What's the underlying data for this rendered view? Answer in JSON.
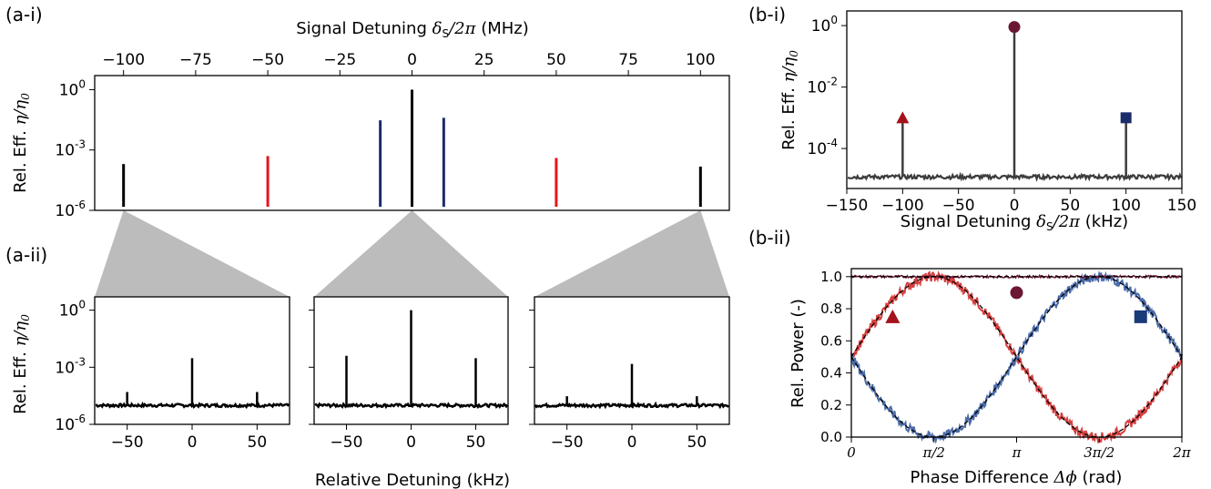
{
  "panels": {
    "a_i": "(a-i)",
    "a_ii": "(a-ii)",
    "b_i": "(b-i)",
    "b_ii": "(b-ii)"
  },
  "colors": {
    "black": "#000000",
    "red": "#e8141a",
    "navy": "#1b2c6b",
    "gray": "#3c3c3c",
    "maroon": "#6b1734",
    "darkred": "#a5121b",
    "blue": "#1a3a7a",
    "fill": "#bcbcbc",
    "red_trace": "#d44040",
    "blue_trace": "#4a6aa8"
  },
  "labels": {
    "signal_detuning_mhz": [
      "Signal Detuning ",
      "δ",
      "S",
      "/2",
      "π",
      " (MHz)"
    ],
    "signal_detuning_khz": [
      "Signal Detuning ",
      "δ",
      "S",
      "/2",
      "π",
      " (kHz)"
    ],
    "rel_eff": [
      "Rel. Eff. ",
      "η/η",
      "0"
    ],
    "relative_detuning": "Relative Detuning (kHz)",
    "rel_power": "Rel. Power (-)",
    "phase_difference": [
      "Phase Difference ",
      "Δϕ",
      " (rad)"
    ]
  },
  "chart_data": [
    {
      "id": "a-i",
      "type": "line",
      "x_axis": "Signal Detuning δS/2π (MHz)",
      "y_axis": "Rel. Eff. η/η0",
      "x_ticks": [
        "−100",
        "−75",
        "−50",
        "−25",
        "0",
        "25",
        "50",
        "75",
        "100"
      ],
      "x_tick_values": [
        -100,
        -75,
        -50,
        -25,
        0,
        25,
        50,
        75,
        100
      ],
      "y_ticks": [
        "10^0",
        "10^-3",
        "10^-6"
      ],
      "y_scale": "log",
      "xlim": [
        -110,
        110
      ],
      "ylim": [
        1e-06,
        5
      ],
      "peaks": [
        {
          "x": -100,
          "top": 0.0002,
          "bottom": 1.5e-06,
          "color": "black"
        },
        {
          "x": -50,
          "top": 0.0005,
          "bottom": 1.5e-06,
          "color": "red"
        },
        {
          "x": -11,
          "top": 0.03,
          "bottom": 1.5e-06,
          "color": "navy"
        },
        {
          "x": 0,
          "top": 1.0,
          "bottom": 1.5e-06,
          "color": "black"
        },
        {
          "x": 11,
          "top": 0.04,
          "bottom": 1.5e-06,
          "color": "navy"
        },
        {
          "x": 50,
          "top": 0.0004,
          "bottom": 1.5e-06,
          "color": "red"
        },
        {
          "x": 100,
          "top": 0.00015,
          "bottom": 1.5e-06,
          "color": "black"
        }
      ]
    },
    {
      "id": "a-ii",
      "type": "line",
      "x_axis": "Relative Detuning (kHz)",
      "y_axis": "Rel. Eff. η/η0",
      "x_ticks": [
        "−50",
        "0",
        "50"
      ],
      "x_tick_values": [
        -50,
        0,
        50
      ],
      "y_ticks": [
        "10^0",
        "10^-3",
        "10^-6"
      ],
      "y_scale": "log",
      "xlim": [
        -75,
        75
      ],
      "ylim": [
        1e-06,
        5
      ],
      "noise_floor": 1e-05,
      "subpanels": [
        {
          "center_mhz": -100,
          "peaks": [
            {
              "x": -50,
              "y": 5e-05
            },
            {
              "x": 0,
              "y": 0.003
            },
            {
              "x": 50,
              "y": 5e-05
            }
          ]
        },
        {
          "center_mhz": 0,
          "peaks": [
            {
              "x": -50,
              "y": 0.004
            },
            {
              "x": 0,
              "y": 1.0
            },
            {
              "x": 50,
              "y": 0.003
            }
          ]
        },
        {
          "center_mhz": 100,
          "peaks": [
            {
              "x": -50,
              "y": 3e-05
            },
            {
              "x": 0,
              "y": 0.0015
            },
            {
              "x": 50,
              "y": 3e-05
            }
          ]
        }
      ]
    },
    {
      "id": "b-i",
      "type": "line",
      "x_axis": "Signal Detuning δS/2π (kHz)",
      "y_axis": "Rel. Eff. η/η0",
      "x_ticks": [
        "−150",
        "−100",
        "−50",
        "0",
        "50",
        "100",
        "150"
      ],
      "x_tick_values": [
        -150,
        -100,
        -50,
        0,
        50,
        100,
        150
      ],
      "y_ticks": [
        "10^0",
        "10^-2",
        "10^-4"
      ],
      "y_tick_values": [
        1,
        0.01,
        0.0001
      ],
      "y_scale": "log",
      "xlim": [
        -150,
        150
      ],
      "ylim": [
        5e-06,
        3
      ],
      "noise_floor": 1.2e-05,
      "peaks": [
        {
          "x": -100,
          "y": 0.001,
          "marker": "triangle"
        },
        {
          "x": 0,
          "y": 0.9,
          "marker": "circle"
        },
        {
          "x": 100,
          "y": 0.001,
          "marker": "square"
        }
      ]
    },
    {
      "id": "b-ii",
      "type": "line",
      "x_axis": "Phase Difference Δϕ (rad)",
      "y_axis": "Rel. Power (-)",
      "x_ticks": [
        "0",
        "π/2",
        "π",
        "3π/2",
        "2π"
      ],
      "y_ticks": [
        "0.0",
        "0.2",
        "0.4",
        "0.6",
        "0.8",
        "1.0"
      ],
      "y_tick_values": [
        0,
        0.2,
        0.4,
        0.6,
        0.8,
        1.0
      ],
      "xlim": [
        0,
        6.2832
      ],
      "ylim": [
        0,
        1.05
      ],
      "series": [
        {
          "marker": "triangle",
          "model": "0.5 + 0.5*cos(x - 1.571)",
          "color": "red"
        },
        {
          "marker": "circle",
          "model": "1.0",
          "color": "dark"
        },
        {
          "marker": "square",
          "model": "0.5 - 0.5*cos(x - 1.571)",
          "color": "blue"
        }
      ],
      "markers": [
        {
          "shape": "triangle",
          "x": 0.785,
          "y": 0.75
        },
        {
          "shape": "circle",
          "x": 3.1416,
          "y": 0.9
        },
        {
          "shape": "square",
          "x": 5.5,
          "y": 0.75
        }
      ]
    }
  ]
}
